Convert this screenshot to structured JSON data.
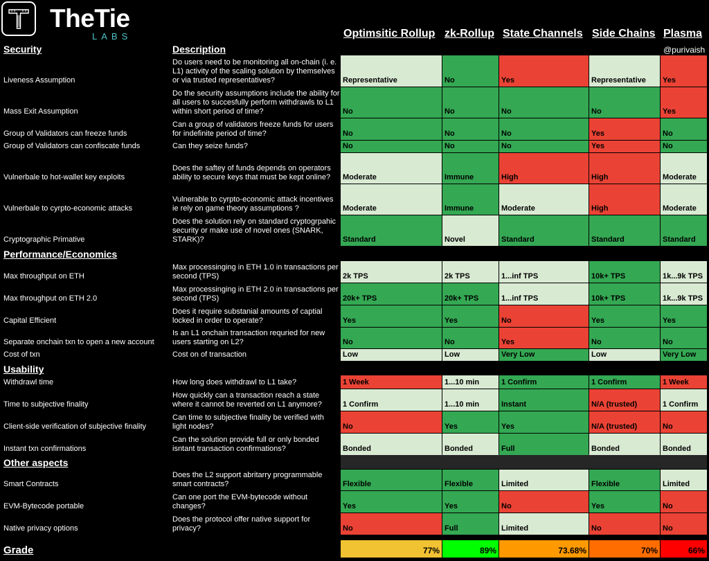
{
  "brand": {
    "name": "TheTie",
    "sub": "LABS"
  },
  "handle": "@purivaish",
  "columns": [
    "Optimsitic Rollup",
    "zk-Rollup",
    "State Channels",
    "Side Chains",
    "Plasma"
  ],
  "headers": {
    "security": "Security",
    "description": "Description"
  },
  "sections": {
    "performance": "Performance/Economics",
    "usability": "Usability",
    "other": "Other aspects"
  },
  "colors": {
    "green": "#34a853",
    "light_green": "#d9ead3",
    "red": "#ea4335",
    "blank_band": "#262626"
  },
  "rows": [
    {
      "feature": "Liveness Assumption",
      "description": "Do users need to be monitoring all on-chain (i. e. L1) activity of the scaling solution by themselves or via trusted representatives?",
      "cells": [
        {
          "v": "Representative",
          "c": "light"
        },
        {
          "v": "No",
          "c": "green"
        },
        {
          "v": "Yes",
          "c": "red"
        },
        {
          "v": "Representative",
          "c": "light"
        },
        {
          "v": "Yes",
          "c": "red"
        }
      ]
    },
    {
      "feature": "Mass Exit Assumption",
      "description": "Do the security assumptions include the ability for all users to succesfully perform withdrawls to L1 within short period of time?",
      "cells": [
        {
          "v": "No",
          "c": "green"
        },
        {
          "v": "No",
          "c": "green"
        },
        {
          "v": "No",
          "c": "green"
        },
        {
          "v": "No",
          "c": "green"
        },
        {
          "v": "Yes",
          "c": "red"
        }
      ]
    },
    {
      "feature": "Group of Validators can freeze funds",
      "description": "Can a group of validators freeze funds for users for indefinite period of time?",
      "cells": [
        {
          "v": "No",
          "c": "green"
        },
        {
          "v": "No",
          "c": "green"
        },
        {
          "v": "No",
          "c": "green"
        },
        {
          "v": "Yes",
          "c": "red"
        },
        {
          "v": "No",
          "c": "green"
        }
      ]
    },
    {
      "feature": "Group of Validators can confiscate funds",
      "description": "Can they seize funds?",
      "cells": [
        {
          "v": "No",
          "c": "green"
        },
        {
          "v": "No",
          "c": "green"
        },
        {
          "v": "No",
          "c": "green"
        },
        {
          "v": "Yes",
          "c": "red"
        },
        {
          "v": "No",
          "c": "green"
        }
      ]
    },
    {
      "feature": "Vulnerbale to hot-wallet key exploits",
      "description": "Does the saftey of funds depends on operators ability to secure keys that must be kept online?",
      "cells": [
        {
          "v": "Moderate",
          "c": "light"
        },
        {
          "v": "Immune",
          "c": "green"
        },
        {
          "v": "High",
          "c": "red"
        },
        {
          "v": "High",
          "c": "red"
        },
        {
          "v": "Moderate",
          "c": "light"
        }
      ]
    },
    {
      "feature": "Vulnerbale to cyrpto-economic attacks",
      "description": "Vulnerable to cyrpto-economic attack incentives ie rely on game theory assumptions ?",
      "cells": [
        {
          "v": "Moderate",
          "c": "light"
        },
        {
          "v": "Immune",
          "c": "green"
        },
        {
          "v": "Moderate",
          "c": "light"
        },
        {
          "v": "High",
          "c": "red"
        },
        {
          "v": "Moderate",
          "c": "light"
        }
      ]
    },
    {
      "feature": "Cryptographic Primative",
      "description": "Does the solution rely on standard cryptogrpahic security or make use of novel ones (SNARK, STARK)?",
      "cells": [
        {
          "v": "Standard",
          "c": "green"
        },
        {
          "v": "Novel",
          "c": "light"
        },
        {
          "v": "Standard",
          "c": "green"
        },
        {
          "v": "Standard",
          "c": "green"
        },
        {
          "v": "Standard",
          "c": "green"
        }
      ]
    },
    {
      "feature": "Max throughput on ETH",
      "description": "Max processinging in ETH 1.0 in transactions per second (TPS)",
      "cells": [
        {
          "v": "2k TPS",
          "c": "light"
        },
        {
          "v": "2k TPS",
          "c": "light"
        },
        {
          "v": "1...inf TPS",
          "c": "light"
        },
        {
          "v": "10k+ TPS",
          "c": "green"
        },
        {
          "v": "1k...9k TPS",
          "c": "light"
        }
      ]
    },
    {
      "feature": "Max throughput on ETH 2.0",
      "description": "Max processinging in ETH 2.0  in transactions per second (TPS)",
      "cells": [
        {
          "v": "20k+ TPS",
          "c": "green"
        },
        {
          "v": "20k+ TPS",
          "c": "green"
        },
        {
          "v": "1...inf TPS",
          "c": "light"
        },
        {
          "v": "10k+ TPS",
          "c": "green"
        },
        {
          "v": "1k...9k TPS",
          "c": "light"
        }
      ]
    },
    {
      "feature": "Capital Efficient",
      "description": "Does it require substanial amounts of captial locked in order to operate?",
      "cells": [
        {
          "v": "Yes",
          "c": "green"
        },
        {
          "v": "Yes",
          "c": "green"
        },
        {
          "v": "No",
          "c": "red"
        },
        {
          "v": "Yes",
          "c": "green"
        },
        {
          "v": "Yes",
          "c": "green"
        }
      ]
    },
    {
      "feature": "Separate onchain txn to open a new account",
      "description": "Is an L1 onchain transaction requried for new users starting on L2?",
      "cells": [
        {
          "v": "No",
          "c": "green"
        },
        {
          "v": "No",
          "c": "green"
        },
        {
          "v": "Yes",
          "c": "red"
        },
        {
          "v": "No",
          "c": "green"
        },
        {
          "v": "No",
          "c": "green"
        }
      ]
    },
    {
      "feature": "Cost of txn",
      "description": "Cost on of transaction",
      "cells": [
        {
          "v": "Low",
          "c": "light"
        },
        {
          "v": "Low",
          "c": "light"
        },
        {
          "v": "Very Low",
          "c": "green"
        },
        {
          "v": "Low",
          "c": "light"
        },
        {
          "v": "Very Low",
          "c": "green"
        }
      ]
    },
    {
      "feature": "Withdrawl time",
      "description": "How long does withdrawl to L1 take?",
      "cells": [
        {
          "v": "1 Week",
          "c": "red"
        },
        {
          "v": "1...10 min",
          "c": "light"
        },
        {
          "v": "1 Confirm",
          "c": "green"
        },
        {
          "v": "1 Confirm",
          "c": "green"
        },
        {
          "v": "1 Week",
          "c": "red"
        }
      ]
    },
    {
      "feature": "Time to subjective finality",
      "description": "How quickly can a transaction reach a state where it cannot be reverted on L1 anymore?",
      "cells": [
        {
          "v": "1 Confirm",
          "c": "light"
        },
        {
          "v": "1...10 min",
          "c": "light"
        },
        {
          "v": "Instant",
          "c": "green"
        },
        {
          "v": "N/A (trusted)",
          "c": "red"
        },
        {
          "v": "1 Confirm",
          "c": "light"
        }
      ]
    },
    {
      "feature": "Client-side verification of subjective finality",
      "description": "Can time to subjective finality be verified with light nodes?",
      "cells": [
        {
          "v": "No",
          "c": "red"
        },
        {
          "v": "Yes",
          "c": "green"
        },
        {
          "v": "Yes",
          "c": "green"
        },
        {
          "v": "N/A (trusted)",
          "c": "red"
        },
        {
          "v": "No",
          "c": "red"
        }
      ]
    },
    {
      "feature": "Instant txn confirmations",
      "description": "Can the solution provide full or only bonded isntant transaction confirmations?",
      "cells": [
        {
          "v": "Bonded",
          "c": "light"
        },
        {
          "v": "Bonded",
          "c": "light"
        },
        {
          "v": "Full",
          "c": "green"
        },
        {
          "v": "Bonded",
          "c": "light"
        },
        {
          "v": "Bonded",
          "c": "light"
        }
      ]
    },
    {
      "feature": "Smart Contracts",
      "description": "Does the L2 support abritarry programmable smart contracts?",
      "cells": [
        {
          "v": "Flexible",
          "c": "green"
        },
        {
          "v": "Flexible",
          "c": "green"
        },
        {
          "v": "Limited",
          "c": "light"
        },
        {
          "v": "Flexible",
          "c": "green"
        },
        {
          "v": "Limited",
          "c": "light"
        }
      ]
    },
    {
      "feature": "EVM-Bytecode portable",
      "description": "Can one port the EVM-bytecode without changes?",
      "cells": [
        {
          "v": "Yes",
          "c": "green"
        },
        {
          "v": "Yes",
          "c": "green"
        },
        {
          "v": "No",
          "c": "red"
        },
        {
          "v": "Yes",
          "c": "green"
        },
        {
          "v": "No",
          "c": "red"
        }
      ]
    },
    {
      "feature": "Native privacy options",
      "description": "Does the protocol offer native support for privacy?",
      "cells": [
        {
          "v": "No",
          "c": "red"
        },
        {
          "v": "Full",
          "c": "green"
        },
        {
          "v": "Limited",
          "c": "light"
        },
        {
          "v": "No",
          "c": "red"
        },
        {
          "v": "No",
          "c": "red"
        }
      ]
    }
  ],
  "grade": {
    "label": "Grade",
    "values": [
      {
        "v": "77%",
        "color": "#f1c232"
      },
      {
        "v": "89%",
        "color": "#00ff00"
      },
      {
        "v": "73.68%",
        "color": "#ff9900"
      },
      {
        "v": "70%",
        "color": "#ff6d01"
      },
      {
        "v": "66%",
        "color": "#ff0000"
      }
    ]
  }
}
